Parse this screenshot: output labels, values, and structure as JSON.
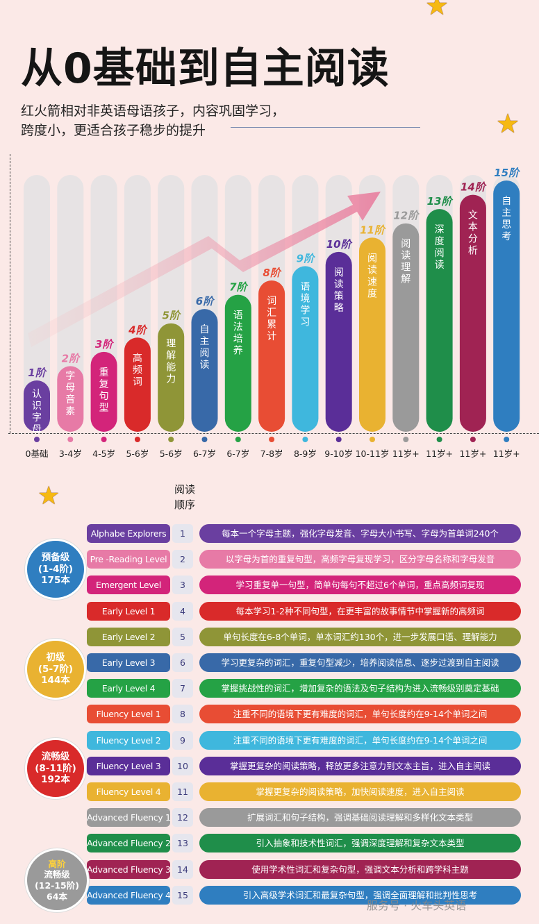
{
  "title": "从0基础到自主阅读",
  "subtitle": [
    "红火箭相对非英语母语孩子，内容巩固学习，",
    "跨度小，更适合孩子稳步的提升"
  ],
  "order_label": [
    "阅读",
    "顺序"
  ],
  "watermark": "服务号 · 火车头英语",
  "chart_data": {
    "type": "bar",
    "categories": [
      "0基础",
      "3-4岁",
      "4-5岁",
      "5-6岁",
      "5-6岁",
      "6-7岁",
      "6-7岁",
      "7-8岁",
      "8-9岁",
      "9-10岁",
      "10-11岁",
      "11岁+",
      "11岁+",
      "11岁+",
      "11岁+"
    ],
    "stages": [
      "1阶",
      "2阶",
      "3阶",
      "4阶",
      "5阶",
      "6阶",
      "7阶",
      "8阶",
      "9阶",
      "10阶",
      "11阶",
      "12阶",
      "13阶",
      "14阶",
      "15阶"
    ],
    "values": [
      1,
      2,
      3,
      4,
      5,
      6,
      7,
      8,
      9,
      10,
      11,
      12,
      13,
      14,
      15
    ],
    "bar_labels": [
      "认识字母",
      "字母音素",
      "重复句型",
      "高频词",
      "理解能力",
      "自主阅读",
      "语法培养",
      "词汇累计",
      "语境学习",
      "阅读策略",
      "阅读速度",
      "阅读理解",
      "深度阅读",
      "文本分析",
      "自主思考"
    ],
    "colors": [
      "#6a3fa0",
      "#e77aa6",
      "#d3247a",
      "#d92a2a",
      "#8f9537",
      "#3869a8",
      "#25a245",
      "#e84d34",
      "#3fb7dd",
      "#5a2e98",
      "#e9b231",
      "#9a9a9a",
      "#1f8e4a",
      "#a02353",
      "#2f7ec0"
    ],
    "ylim": [
      0,
      15
    ]
  },
  "levels": [
    {
      "num": "1",
      "name": "Alphabe Explorers",
      "desc": "每本一个字母主题，强化字母发音、字母大小书写、字母为首单词240个",
      "color": "#6a3fa0"
    },
    {
      "num": "2",
      "name": "Pre -Reading Level",
      "desc": "以字母为首的重复句型，高频字母复现学习，区分字母名称和字母发音",
      "color": "#e77aa6"
    },
    {
      "num": "3",
      "name": "Emergent Level",
      "desc": "学习重复单一句型，简单句每句不超过6个单词，重点高频词复现",
      "color": "#d3247a"
    },
    {
      "num": "4",
      "name": "Early Level 1",
      "desc": "每本学习1-2种不同句型，在更丰富的故事情节中掌握新的高频词",
      "color": "#d92a2a"
    },
    {
      "num": "5",
      "name": "Early Level 2",
      "desc": "单句长度在6-8个单词，单本词汇约130个，进一步发展口语、理解能力",
      "color": "#8f9537"
    },
    {
      "num": "6",
      "name": "Early Level 3",
      "desc": "学习更复杂的词汇，重复句型减少，培养阅读信息、逐步过渡到自主阅读",
      "color": "#3869a8"
    },
    {
      "num": "7",
      "name": "Early Level 4",
      "desc": "掌握挑战性的词汇，增加复杂的语法及句子结构为进入流畅级别奠定基础",
      "color": "#25a245"
    },
    {
      "num": "8",
      "name": "Fluency Level 1",
      "desc": "注重不同的语境下更有难度的词汇，单句长度约在9-14个单词之间",
      "color": "#e84d34"
    },
    {
      "num": "9",
      "name": "Fluency Level 2",
      "desc": "注重不同的语境下更有难度的词汇，单句长度约在9-14个单词之间",
      "color": "#3fb7dd"
    },
    {
      "num": "10",
      "name": "Fluency Level 3",
      "desc": "掌握更复杂的阅读策略，释放更多注意力到文本主旨，进入自主阅读",
      "color": "#5a2e98"
    },
    {
      "num": "11",
      "name": "Fluency Level 4",
      "desc": "掌握更复杂的阅读策略，加快阅读速度，进入自主阅读",
      "color": "#e9b231"
    },
    {
      "num": "12",
      "name": "Advanced Fluency 1",
      "desc": "扩展词汇和句子结构，强调基础阅读理解和多样化文本类型",
      "color": "#9a9a9a"
    },
    {
      "num": "13",
      "name": "Advanced Fluency 2",
      "desc": "引入抽象和技术性词汇，强调深度理解和复杂文本类型",
      "color": "#1f8e4a"
    },
    {
      "num": "14",
      "name": "Advanced Fluency 3",
      "desc": "使用学术性词汇和复杂句型，强调文本分析和跨学科主题",
      "color": "#a02353"
    },
    {
      "num": "15",
      "name": "Advanced Fluency 4",
      "desc": "引入高级学术词汇和最复杂句型，强调全面理解和批判性思考",
      "color": "#2f7ec0"
    }
  ],
  "tiers": [
    {
      "lines": [
        "预备级",
        "(1-4阶)",
        "175本"
      ],
      "color": "#2f7ec0"
    },
    {
      "lines": [
        "初级",
        "(5-7阶)",
        "144本"
      ],
      "color": "#e9b231"
    },
    {
      "lines": [
        "流畅级",
        "(8-11阶)",
        "192本"
      ],
      "color": "#d92a2a"
    },
    {
      "lines": [
        "高阶",
        "流畅级",
        "(12-15阶)",
        "64本"
      ],
      "color": "#9a9a9a"
    }
  ]
}
